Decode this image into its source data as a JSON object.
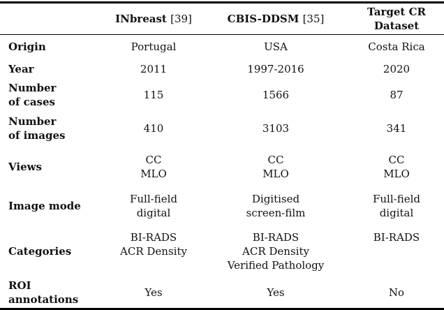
{
  "table": {
    "header": {
      "col1": {
        "name": "INbreast",
        "cite": "[39]"
      },
      "col2": {
        "name": "CBIS-DDSM",
        "cite": "[35]"
      },
      "col3": {
        "line1": "Target CR",
        "line2": "Dataset"
      }
    },
    "rows": [
      {
        "label": [
          "Origin"
        ],
        "c1": [
          "Portugal"
        ],
        "c2": [
          "USA"
        ],
        "c3": [
          "Costa Rica"
        ]
      },
      {
        "label": [
          "Year"
        ],
        "c1": [
          "2011"
        ],
        "c2": [
          "1997-2016"
        ],
        "c3": [
          "2020"
        ]
      },
      {
        "label": [
          "Number",
          "of cases"
        ],
        "c1": [
          "115"
        ],
        "c2": [
          "1566"
        ],
        "c3": [
          "87"
        ]
      },
      {
        "label": [
          "Number",
          "of images"
        ],
        "c1": [
          "410"
        ],
        "c2": [
          "3103"
        ],
        "c3": [
          "341"
        ]
      },
      {
        "label": [
          "Views"
        ],
        "c1": [
          "CC",
          "MLO"
        ],
        "c2": [
          "CC",
          "MLO"
        ],
        "c3": [
          "CC",
          "MLO"
        ]
      },
      {
        "label": [
          "Image mode"
        ],
        "c1": [
          "Full-field",
          "digital"
        ],
        "c2": [
          "Digitised",
          "screen-film"
        ],
        "c3": [
          "Full-field",
          "digital"
        ]
      },
      {
        "label": [
          "Categories"
        ],
        "c1": [
          "BI-RADS",
          "ACR Density"
        ],
        "c2": [
          "BI-RADS",
          "ACR Density",
          "Verified Pathology"
        ],
        "c3": [
          "BI-RADS"
        ]
      },
      {
        "label": [
          "ROI",
          "annotations"
        ],
        "c1": [
          "Yes"
        ],
        "c2": [
          "Yes"
        ],
        "c3": [
          "No"
        ]
      }
    ]
  }
}
